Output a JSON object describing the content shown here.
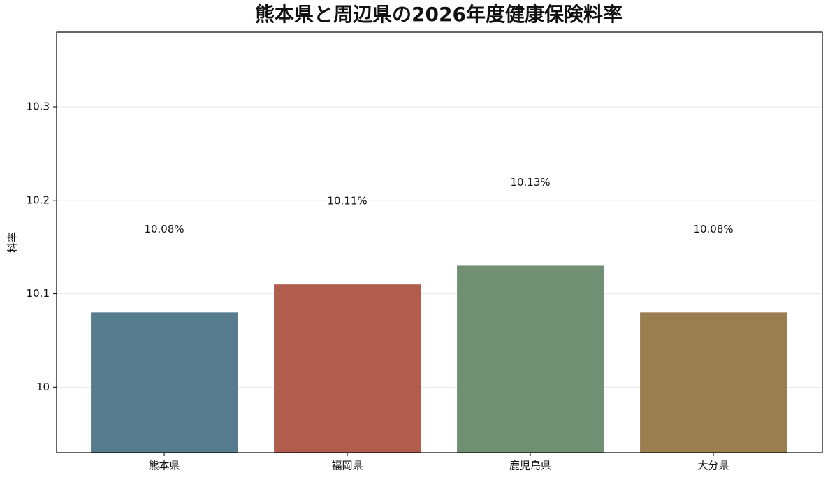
{
  "chart_data": {
    "type": "bar",
    "title": "熊本県と周辺県の2026年度健康保険料率",
    "y_label": "料率",
    "categories": [
      "熊本県",
      "福岡県",
      "鹿児島県",
      "大分県"
    ],
    "values": [
      10.08,
      10.11,
      10.13,
      10.08
    ],
    "value_labels": [
      "10.08%",
      "10.11%",
      "10.13%",
      "10.08%"
    ],
    "colors": [
      "#577c8e",
      "#b05d4d",
      "#708f73",
      "#9b7e50"
    ],
    "ylim": [
      9.93,
      10.38
    ],
    "yticks": [
      10.0,
      10.1,
      10.2,
      10.3
    ],
    "grid": true
  }
}
